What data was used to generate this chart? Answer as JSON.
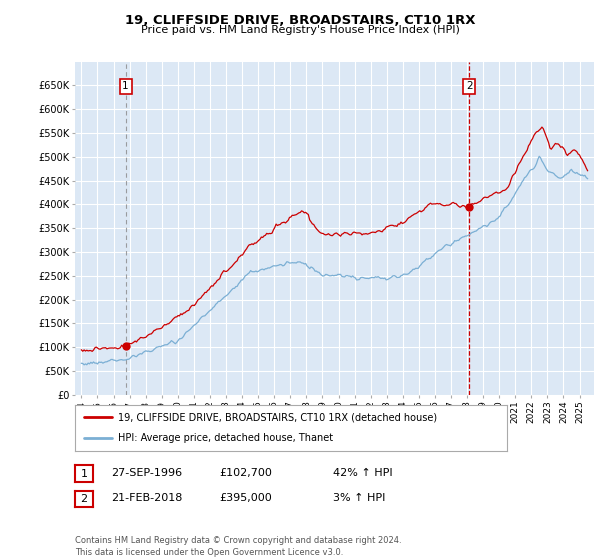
{
  "title": "19, CLIFFSIDE DRIVE, BROADSTAIRS, CT10 1RX",
  "subtitle": "Price paid vs. HM Land Registry's House Price Index (HPI)",
  "legend_label_red": "19, CLIFFSIDE DRIVE, BROADSTAIRS, CT10 1RX (detached house)",
  "legend_label_blue": "HPI: Average price, detached house, Thanet",
  "transaction1_date": "27-SEP-1996",
  "transaction1_price": "£102,700",
  "transaction1_hpi": "42% ↑ HPI",
  "transaction2_date": "21-FEB-2018",
  "transaction2_price": "£395,000",
  "transaction2_hpi": "3% ↑ HPI",
  "footnote": "Contains HM Land Registry data © Crown copyright and database right 2024.\nThis data is licensed under the Open Government Licence v3.0.",
  "ylim_min": 0,
  "ylim_max": 700000,
  "yticks": [
    0,
    50000,
    100000,
    150000,
    200000,
    250000,
    300000,
    350000,
    400000,
    450000,
    500000,
    550000,
    600000,
    650000
  ],
  "ytick_labels": [
    "£0",
    "£50K",
    "£100K",
    "£150K",
    "£200K",
    "£250K",
    "£300K",
    "£350K",
    "£400K",
    "£450K",
    "£500K",
    "£550K",
    "£600K",
    "£650K"
  ],
  "color_red": "#cc0000",
  "color_blue": "#7bafd4",
  "color_vline1": "#888888",
  "color_vline2": "#cc0000",
  "background_plot": "#dce8f5",
  "background_fig": "#ffffff",
  "grid_color": "#ffffff",
  "transaction1_x": 1996.75,
  "transaction2_x": 2018.13,
  "transaction1_y": 102700,
  "transaction2_y": 395000,
  "xlim_min": 1993.6,
  "xlim_max": 2025.9
}
